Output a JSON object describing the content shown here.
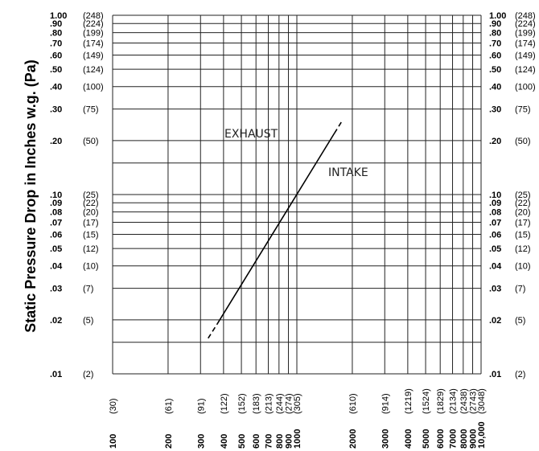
{
  "chart_data": {
    "type": "line",
    "title": "",
    "ylabel": "Static Pressure Drop in Inches w.g. (Pa)",
    "xlabel": "",
    "x_scale": "log",
    "y_scale": "log",
    "xlim": [
      100,
      10000
    ],
    "ylim": [
      0.01,
      1.0
    ],
    "grid": true,
    "y_ticks": [
      {
        "v": 1.0,
        "l": "1.00",
        "p": "(248)"
      },
      {
        "v": 0.9,
        "l": ".90",
        "p": "(224)"
      },
      {
        "v": 0.8,
        "l": ".80",
        "p": "(199)"
      },
      {
        "v": 0.7,
        "l": ".70",
        "p": "(174)"
      },
      {
        "v": 0.6,
        "l": ".60",
        "p": "(149)"
      },
      {
        "v": 0.5,
        "l": ".50",
        "p": "(124)"
      },
      {
        "v": 0.4,
        "l": ".40",
        "p": "(100)"
      },
      {
        "v": 0.3,
        "l": ".30",
        "p": "(75)"
      },
      {
        "v": 0.2,
        "l": ".20",
        "p": "(50)"
      },
      {
        "v": 0.1,
        "l": ".10",
        "p": "(25)"
      },
      {
        "v": 0.09,
        "l": ".09",
        "p": "(22)"
      },
      {
        "v": 0.08,
        "l": ".08",
        "p": "(20)"
      },
      {
        "v": 0.07,
        "l": ".07",
        "p": "(17)"
      },
      {
        "v": 0.06,
        "l": ".06",
        "p": "(15)"
      },
      {
        "v": 0.05,
        "l": ".05",
        "p": "(12)"
      },
      {
        "v": 0.04,
        "l": ".04",
        "p": "(10)"
      },
      {
        "v": 0.03,
        "l": ".03",
        "p": "(7)"
      },
      {
        "v": 0.02,
        "l": ".02",
        "p": "(5)"
      },
      {
        "v": 0.01,
        "l": ".01",
        "p": "(2)"
      }
    ],
    "x_ticks": [
      {
        "v": 100,
        "l": "100",
        "p": "(30)"
      },
      {
        "v": 200,
        "l": "200",
        "p": "(61)"
      },
      {
        "v": 300,
        "l": "300",
        "p": "(91)"
      },
      {
        "v": 400,
        "l": "400",
        "p": "(122)"
      },
      {
        "v": 500,
        "l": "500",
        "p": "(152)"
      },
      {
        "v": 600,
        "l": "600",
        "p": "(183)"
      },
      {
        "v": 700,
        "l": "700",
        "p": "(213)"
      },
      {
        "v": 800,
        "l": "800",
        "p": "(244)"
      },
      {
        "v": 900,
        "l": "900",
        "p": "(274)"
      },
      {
        "v": 1000,
        "l": "1000",
        "p": "(305)"
      },
      {
        "v": 2000,
        "l": "2000",
        "p": "(610)"
      },
      {
        "v": 3000,
        "l": "3000",
        "p": "(914)"
      },
      {
        "v": 4000,
        "l": "4000",
        "p": "(1219)"
      },
      {
        "v": 5000,
        "l": "5000",
        "p": "(1524)"
      },
      {
        "v": 6000,
        "l": "6000",
        "p": "(1829)"
      },
      {
        "v": 7000,
        "l": "7000",
        "p": "(2134)"
      },
      {
        "v": 8000,
        "l": "8000",
        "p": "(2438)"
      },
      {
        "v": 9000,
        "l": "9000",
        "p": "(2743)"
      },
      {
        "v": 10000,
        "l": "10,000",
        "p": "(3048)"
      }
    ],
    "series": [
      {
        "solid": [
          [
            370,
            0.019
          ],
          [
            1600,
            0.22
          ]
        ],
        "dashed": [
          [
            330,
            0.0158
          ],
          [
            370,
            0.019
          ],
          [
            1600,
            0.22
          ],
          [
            1750,
            0.255
          ]
        ],
        "color": "#000000"
      }
    ],
    "annotations": [
      "EXHAUST",
      "INTAKE"
    ]
  }
}
